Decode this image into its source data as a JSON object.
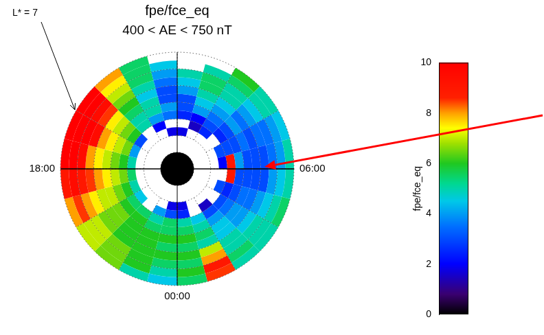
{
  "chart_data": {
    "type": "polar_heatmap",
    "title": "fpe/fce_eq",
    "subtitle": "400 < AE < 750 nT",
    "xlim": [
      0,
      24
    ],
    "xticks": [
      {
        "value": 0,
        "label": "00:00"
      },
      {
        "value": 6,
        "label": "06:00"
      },
      {
        "value": 18,
        "label": "18:00"
      }
    ],
    "ylim": [
      0,
      7
    ],
    "yticks": [
      1,
      2,
      3,
      4,
      5,
      6,
      7
    ],
    "tick_labels": "x",
    "grid": true,
    "mlt_bins": [
      0,
      1,
      2,
      3,
      4,
      5,
      6,
      7,
      8,
      9,
      10,
      11,
      12,
      13,
      14,
      15,
      16,
      17,
      18,
      19,
      20,
      21,
      22,
      23,
      24
    ],
    "l_bins": [
      2,
      2.5,
      3,
      3.5,
      4,
      4.5,
      5,
      5.5,
      6,
      6.5,
      7
    ],
    "values": [
      [
        1.8,
        null,
        null,
        null,
        null,
        null,
        null,
        null,
        null,
        null,
        null,
        1.8,
        1.8,
        null,
        null,
        null,
        null,
        null,
        null,
        null,
        null,
        null,
        null,
        1.8
      ],
      [
        2.5,
        null,
        1.5,
        null,
        3,
        null,
        2,
        3,
        null,
        2.5,
        1.5,
        null,
        null,
        2,
        null,
        3,
        4,
        5,
        5.5,
        5,
        4.5,
        null,
        4,
        3
      ],
      [
        5,
        4.5,
        3,
        3,
        2.5,
        9,
        9,
        3,
        2.5,
        3,
        2,
        2.5,
        3.5,
        4,
        5,
        6,
        6.5,
        6,
        6.5,
        6,
        5.5,
        5.5,
        5,
        5.5
      ],
      [
        5.5,
        5,
        4,
        3.5,
        3,
        3,
        4,
        3,
        3,
        3.5,
        4,
        3,
        4,
        5,
        5,
        6.5,
        7,
        6.5,
        7,
        6.5,
        6,
        6,
        5.5,
        5.5
      ],
      [
        6,
        5.5,
        4.5,
        4,
        3.5,
        3,
        3,
        3.5,
        4,
        4,
        4.5,
        3,
        3,
        5,
        5.5,
        7,
        7.5,
        7,
        7.5,
        7,
        6.5,
        6,
        6,
        6
      ],
      [
        5.5,
        5,
        4.5,
        4,
        3.5,
        3,
        3,
        3,
        3.5,
        4.5,
        5,
        4,
        3,
        4.5,
        6,
        7.5,
        8,
        7.5,
        8,
        7,
        6.5,
        6,
        6,
        5.5
      ],
      [
        6,
        7,
        5,
        4.5,
        4,
        3,
        3,
        3.5,
        4,
        5,
        5.5,
        4.5,
        3.5,
        5,
        6.5,
        8.5,
        9.5,
        8,
        8.5,
        7.5,
        6.5,
        6,
        6,
        6
      ],
      [
        5.5,
        8,
        5,
        5,
        4.5,
        4,
        3.5,
        3.5,
        4.5,
        5,
        5.5,
        5,
        4,
        5.5,
        7,
        9.5,
        10,
        9.5,
        9,
        8,
        7,
        6.5,
        6,
        5.5
      ],
      [
        6,
        9,
        5.5,
        5,
        5,
        4.5,
        4,
        4,
        5,
        5.5,
        5,
        null,
        4.5,
        5.5,
        7.5,
        10,
        10,
        10,
        9.5,
        8.5,
        7,
        6.5,
        6,
        5
      ],
      [
        5.5,
        8.5,
        5,
        5,
        5.5,
        5,
        5,
        4.5,
        5,
        6,
        null,
        null,
        null,
        5.5,
        8,
        10,
        10,
        10,
        9,
        8,
        7,
        6.5,
        5,
        4.5
      ]
    ],
    "colorbar": {
      "label": "fpe/fce_eq",
      "lim": [
        0,
        10
      ],
      "ticks": [
        0,
        2,
        4,
        6,
        8,
        10
      ]
    },
    "annotations": [
      {
        "text": "L* = 7"
      }
    ]
  }
}
